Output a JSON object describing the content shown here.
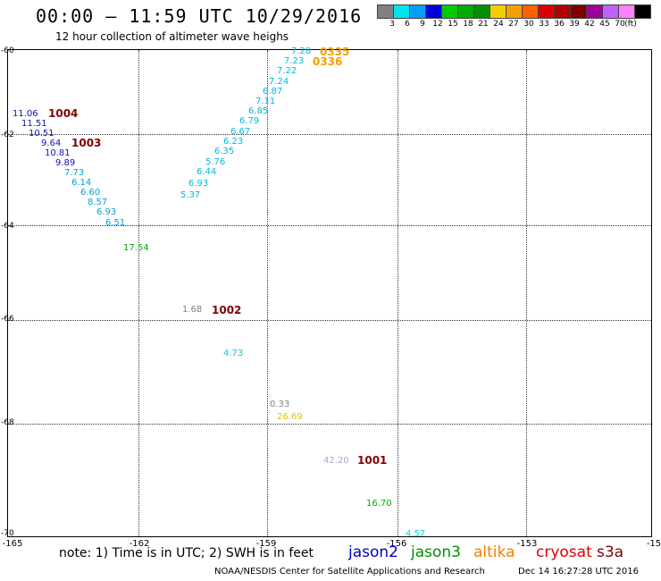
{
  "title": "00:00 – 11:59 UTC 10/29/2016",
  "subtitle": "12 hour collection of altimeter wave heighs",
  "colorbar": {
    "colors": [
      "#808080",
      "#00e5ee",
      "#00a0ff",
      "#0000dd",
      "#00cc00",
      "#00aa00",
      "#009000",
      "#f0d000",
      "#f0a000",
      "#ff6000",
      "#dd0000",
      "#b00000",
      "#800000",
      "#a000a0",
      "#c060ff",
      "#ff80ff",
      "#000000"
    ],
    "labels": [
      "3",
      "6",
      "9",
      "12",
      "15",
      "18",
      "21",
      "24",
      "27",
      "30",
      "33",
      "36",
      "39",
      "42",
      "45",
      "70",
      "(ft)"
    ]
  },
  "lat_labels": [
    "-60",
    "-62",
    "-64",
    "-66",
    "-68",
    "-70"
  ],
  "lon_labels": [
    "-165",
    "-162",
    "-159",
    "-156",
    "-153",
    "-15"
  ],
  "waves": [
    {
      "v": "7.28",
      "c": "#00b8e0"
    },
    {
      "v": "7.23",
      "c": "#00b8e0"
    },
    {
      "v": "7.22",
      "c": "#00b8e0"
    },
    {
      "v": "7.24",
      "c": "#00b8e0"
    },
    {
      "v": "6.87",
      "c": "#00b8e0"
    },
    {
      "v": "7.11",
      "c": "#00b8e0"
    },
    {
      "v": "6.85",
      "c": "#00b8e0"
    },
    {
      "v": "6.79",
      "c": "#00b8e0"
    },
    {
      "v": "6.67",
      "c": "#00b8e0"
    },
    {
      "v": "6.23",
      "c": "#00b8e0"
    },
    {
      "v": "6.35",
      "c": "#00b8e0"
    },
    {
      "v": "5.76",
      "c": "#00b8e0"
    },
    {
      "v": "6.44",
      "c": "#00b8e0"
    },
    {
      "v": "6.93",
      "c": "#00b8e0"
    },
    {
      "v": "5.37",
      "c": "#00b8e0"
    },
    {
      "v": "11.06",
      "c": "#1010b0"
    },
    {
      "v": "11.51",
      "c": "#1010b0"
    },
    {
      "v": "10.51",
      "c": "#1010b0"
    },
    {
      "v": "9.64",
      "c": "#1010b0"
    },
    {
      "v": "10.81",
      "c": "#1010b0"
    },
    {
      "v": "9.89",
      "c": "#1010b0"
    },
    {
      "v": "7.73",
      "c": "#00a0e0"
    },
    {
      "v": "6.14",
      "c": "#00a0e0"
    },
    {
      "v": "6.60",
      "c": "#00a0e0"
    },
    {
      "v": "8.57",
      "c": "#00a0e0"
    },
    {
      "v": "6.93",
      "c": "#00a0e0"
    },
    {
      "v": "6.51",
      "c": "#00a0e0"
    },
    {
      "v": "17.54",
      "c": "#00aa00"
    },
    {
      "v": "1.68",
      "c": "#808080"
    },
    {
      "v": "4.73",
      "c": "#00cce0"
    },
    {
      "v": "0.33",
      "c": "#808080"
    },
    {
      "v": "26.69",
      "c": "#e8c000"
    },
    {
      "v": "42.20",
      "c": "#b8a0e0"
    },
    {
      "v": "16.70",
      "c": "#00aa00"
    },
    {
      "v": "4.57",
      "c": "#00d8e8"
    }
  ],
  "passes": [
    {
      "v": "0335",
      "c": "#f0a000"
    },
    {
      "v": "0336",
      "c": "#f0a000"
    },
    {
      "v": "1004",
      "c": "#800000"
    },
    {
      "v": "1003",
      "c": "#800000"
    },
    {
      "v": "1002",
      "c": "#800000"
    },
    {
      "v": "1001",
      "c": "#800000"
    }
  ],
  "note": "note: 1) Time is in UTC; 2) SWH is in feet",
  "satellites": [
    {
      "name": "jason2",
      "c": "#0000cc"
    },
    {
      "name": "jason3",
      "c": "#009000"
    },
    {
      "name": "altika",
      "c": "#f08000"
    },
    {
      "name": "cryosat",
      "c": "#dd0000"
    },
    {
      "name": "s3a",
      "c": "#800000"
    }
  ],
  "credit": "NOAA/NESDIS Center for Satellite Applications and Research",
  "timestamp": "Dec 14 16:27:28 UTC 2016"
}
